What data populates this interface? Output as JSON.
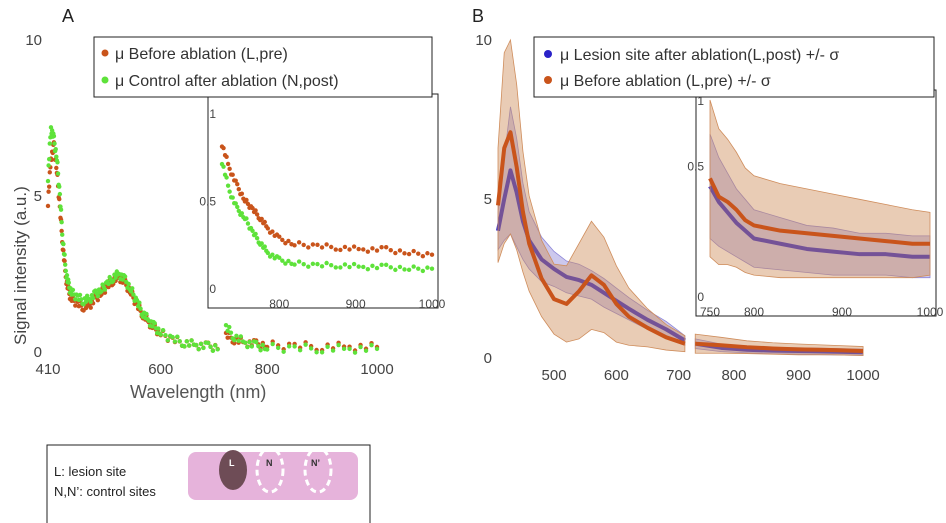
{
  "colors": {
    "orange": "#c9541b",
    "green": "#5ee23a",
    "blue": "#2a22c8",
    "band_orange": "#cf8d5c",
    "band_blue": "#8d86d8",
    "tissue": "#e6b3db",
    "lesion": "#6e4c56"
  },
  "panel_a": {
    "label": "A",
    "ylabel": "Signal intensity (a.u.)",
    "xlabel": "Wavelength (nm)",
    "legend": [
      "μ Before ablation (L,pre)",
      "μ Control after ablation (N,post)"
    ]
  },
  "panel_b": {
    "label": "B",
    "legend": [
      "μ Lesion site after ablation(L,post) +/- σ",
      "μ Before ablation (L,pre) +/- σ"
    ]
  },
  "schematic": {
    "line1": "L: lesion site",
    "line2": "N,N’: control sites",
    "mark_l": "L",
    "mark_n": "N",
    "mark_n2": "N’"
  },
  "chart_data": [
    {
      "id": "A-main",
      "type": "scatter",
      "xlim": [
        410,
        1020
      ],
      "ylim": [
        0,
        10
      ],
      "xticks": [
        "410",
        "600",
        "800",
        "1000"
      ],
      "yticks": [
        "0",
        "5",
        "10"
      ],
      "break": [
        705,
        725
      ],
      "series": [
        {
          "name": "μ Before ablation (L,pre)",
          "color": "orange",
          "x": [
            410,
            415,
            420,
            425,
            430,
            435,
            440,
            445,
            450,
            460,
            470,
            480,
            490,
            500,
            510,
            520,
            530,
            540,
            550,
            560,
            570,
            580,
            590,
            600,
            620,
            640,
            660,
            680,
            700,
            725,
            740,
            760,
            780,
            800,
            850,
            900,
            950,
            1000
          ],
          "y": [
            4.8,
            6.2,
            6.6,
            5.8,
            4.6,
            3.4,
            2.4,
            1.9,
            1.7,
            1.55,
            1.45,
            1.5,
            1.7,
            1.9,
            2.1,
            2.3,
            2.4,
            2.2,
            1.9,
            1.5,
            1.2,
            0.95,
            0.75,
            0.6,
            0.4,
            0.3,
            0.22,
            0.18,
            0.15,
            0.55,
            0.4,
            0.3,
            0.25,
            0.22,
            0.2,
            0.18,
            0.17,
            0.16
          ]
        },
        {
          "name": "μ Control after ablation (N,post)",
          "color": "green",
          "x": [
            410,
            415,
            420,
            425,
            430,
            435,
            440,
            445,
            450,
            460,
            470,
            480,
            490,
            500,
            510,
            520,
            530,
            540,
            550,
            560,
            570,
            580,
            590,
            600,
            620,
            640,
            660,
            680,
            700,
            725,
            740,
            760,
            780,
            800,
            850,
            900,
            950,
            1000
          ],
          "y": [
            5.6,
            7.2,
            6.8,
            6.2,
            5.0,
            3.6,
            2.6,
            2.1,
            1.9,
            1.75,
            1.65,
            1.7,
            1.85,
            2.0,
            2.2,
            2.4,
            2.5,
            2.3,
            2.0,
            1.6,
            1.25,
            1.0,
            0.8,
            0.62,
            0.42,
            0.3,
            0.22,
            0.17,
            0.14,
            0.8,
            0.5,
            0.3,
            0.2,
            0.14,
            0.12,
            0.11,
            0.1,
            0.1
          ]
        }
      ]
    },
    {
      "id": "A-inset",
      "type": "scatter",
      "xlim": [
        725,
        1000
      ],
      "ylim": [
        0,
        1.05
      ],
      "xticks": [
        "800",
        "900",
        "1000"
      ],
      "yticks": [
        "0",
        "0.5",
        "1"
      ],
      "series": [
        {
          "name": "μ Before ablation (L,pre)",
          "color": "orange",
          "x": [
            725,
            735,
            745,
            755,
            765,
            775,
            785,
            800,
            820,
            850,
            880,
            910,
            940,
            970,
            1000
          ],
          "y": [
            0.82,
            0.68,
            0.58,
            0.5,
            0.45,
            0.4,
            0.34,
            0.28,
            0.25,
            0.24,
            0.23,
            0.22,
            0.22,
            0.2,
            0.19
          ]
        },
        {
          "name": "μ Control after ablation (N,post)",
          "color": "green",
          "x": [
            725,
            735,
            745,
            755,
            765,
            775,
            785,
            800,
            820,
            850,
            880,
            910,
            940,
            970,
            1000
          ],
          "y": [
            0.72,
            0.55,
            0.45,
            0.4,
            0.32,
            0.26,
            0.2,
            0.16,
            0.14,
            0.13,
            0.13,
            0.12,
            0.12,
            0.11,
            0.11
          ]
        }
      ]
    },
    {
      "id": "B-main",
      "type": "line",
      "xlim": [
        410,
        1020
      ],
      "ylim": [
        0,
        10
      ],
      "xticks": [
        "500",
        "600",
        "700",
        "800",
        "900",
        "1000"
      ],
      "yticks": [
        "0",
        "5",
        "10"
      ],
      "break": [
        715,
        735
      ],
      "series": [
        {
          "name": "μ Lesion site after ablation(L,post) +/- σ",
          "color": "blue",
          "band": "band_blue",
          "x": [
            410,
            420,
            430,
            440,
            450,
            460,
            480,
            500,
            520,
            540,
            560,
            580,
            600,
            620,
            650,
            680,
            710,
            740,
            780,
            820,
            860,
            900,
            950,
            1000
          ],
          "y": [
            4.0,
            5.0,
            5.9,
            5.2,
            4.3,
            3.7,
            3.1,
            2.8,
            2.55,
            2.45,
            2.3,
            2.05,
            1.8,
            1.55,
            1.2,
            0.9,
            0.55,
            0.45,
            0.32,
            0.26,
            0.23,
            0.22,
            0.2,
            0.18
          ],
          "sigma": [
            0.6,
            1.3,
            2.0,
            1.7,
            1.2,
            0.9,
            0.7,
            0.55,
            0.5,
            0.5,
            0.45,
            0.45,
            0.4,
            0.35,
            0.3,
            0.25,
            0.15,
            0.15,
            0.12,
            0.1,
            0.1,
            0.1,
            0.1,
            0.1
          ]
        },
        {
          "name": "μ Before ablation (L,pre) +/- σ",
          "color": "orange",
          "band": "band_orange",
          "x": [
            410,
            420,
            430,
            440,
            450,
            460,
            480,
            500,
            520,
            540,
            560,
            580,
            600,
            620,
            650,
            680,
            710,
            740,
            780,
            820,
            860,
            900,
            950,
            1000
          ],
          "y": [
            4.8,
            6.6,
            7.1,
            6.0,
            4.6,
            3.6,
            2.5,
            1.85,
            1.7,
            2.1,
            2.6,
            2.3,
            1.7,
            1.3,
            0.95,
            0.65,
            0.45,
            0.45,
            0.4,
            0.34,
            0.3,
            0.27,
            0.25,
            0.22
          ],
          "sigma": [
            1.8,
            3.0,
            3.2,
            2.6,
            1.9,
            1.5,
            1.2,
            1.1,
            1.2,
            1.5,
            1.7,
            1.5,
            1.2,
            0.9,
            0.6,
            0.4,
            0.25,
            0.3,
            0.25,
            0.2,
            0.18,
            0.17,
            0.15,
            0.14
          ]
        }
      ]
    },
    {
      "id": "B-inset",
      "type": "line",
      "xlim": [
        750,
        1000
      ],
      "ylim": [
        0,
        0.75
      ],
      "xticks": [
        "750",
        "800",
        "900",
        "1000"
      ],
      "yticks": [
        "0",
        "0.5",
        "1"
      ],
      "series": [
        {
          "name": "μ Lesion site after ablation(L,post) +/- σ",
          "color": "blue",
          "band": "band_blue",
          "x": [
            750,
            760,
            770,
            780,
            790,
            800,
            830,
            860,
            890,
            920,
            950,
            980,
            1000
          ],
          "y": [
            0.42,
            0.36,
            0.32,
            0.28,
            0.25,
            0.22,
            0.2,
            0.18,
            0.17,
            0.16,
            0.16,
            0.15,
            0.15
          ],
          "sigma": [
            0.2,
            0.17,
            0.15,
            0.13,
            0.12,
            0.11,
            0.1,
            0.09,
            0.09,
            0.08,
            0.08,
            0.08,
            0.08
          ]
        },
        {
          "name": "μ Before ablation (L,pre) +/- σ",
          "color": "orange",
          "band": "band_orange",
          "x": [
            750,
            760,
            770,
            780,
            790,
            800,
            830,
            860,
            890,
            920,
            950,
            980,
            1000
          ],
          "y": [
            0.45,
            0.38,
            0.36,
            0.33,
            0.29,
            0.27,
            0.25,
            0.24,
            0.23,
            0.22,
            0.21,
            0.2,
            0.2
          ],
          "sigma": [
            0.3,
            0.26,
            0.24,
            0.22,
            0.2,
            0.19,
            0.18,
            0.17,
            0.16,
            0.15,
            0.14,
            0.13,
            0.12
          ]
        }
      ]
    }
  ]
}
